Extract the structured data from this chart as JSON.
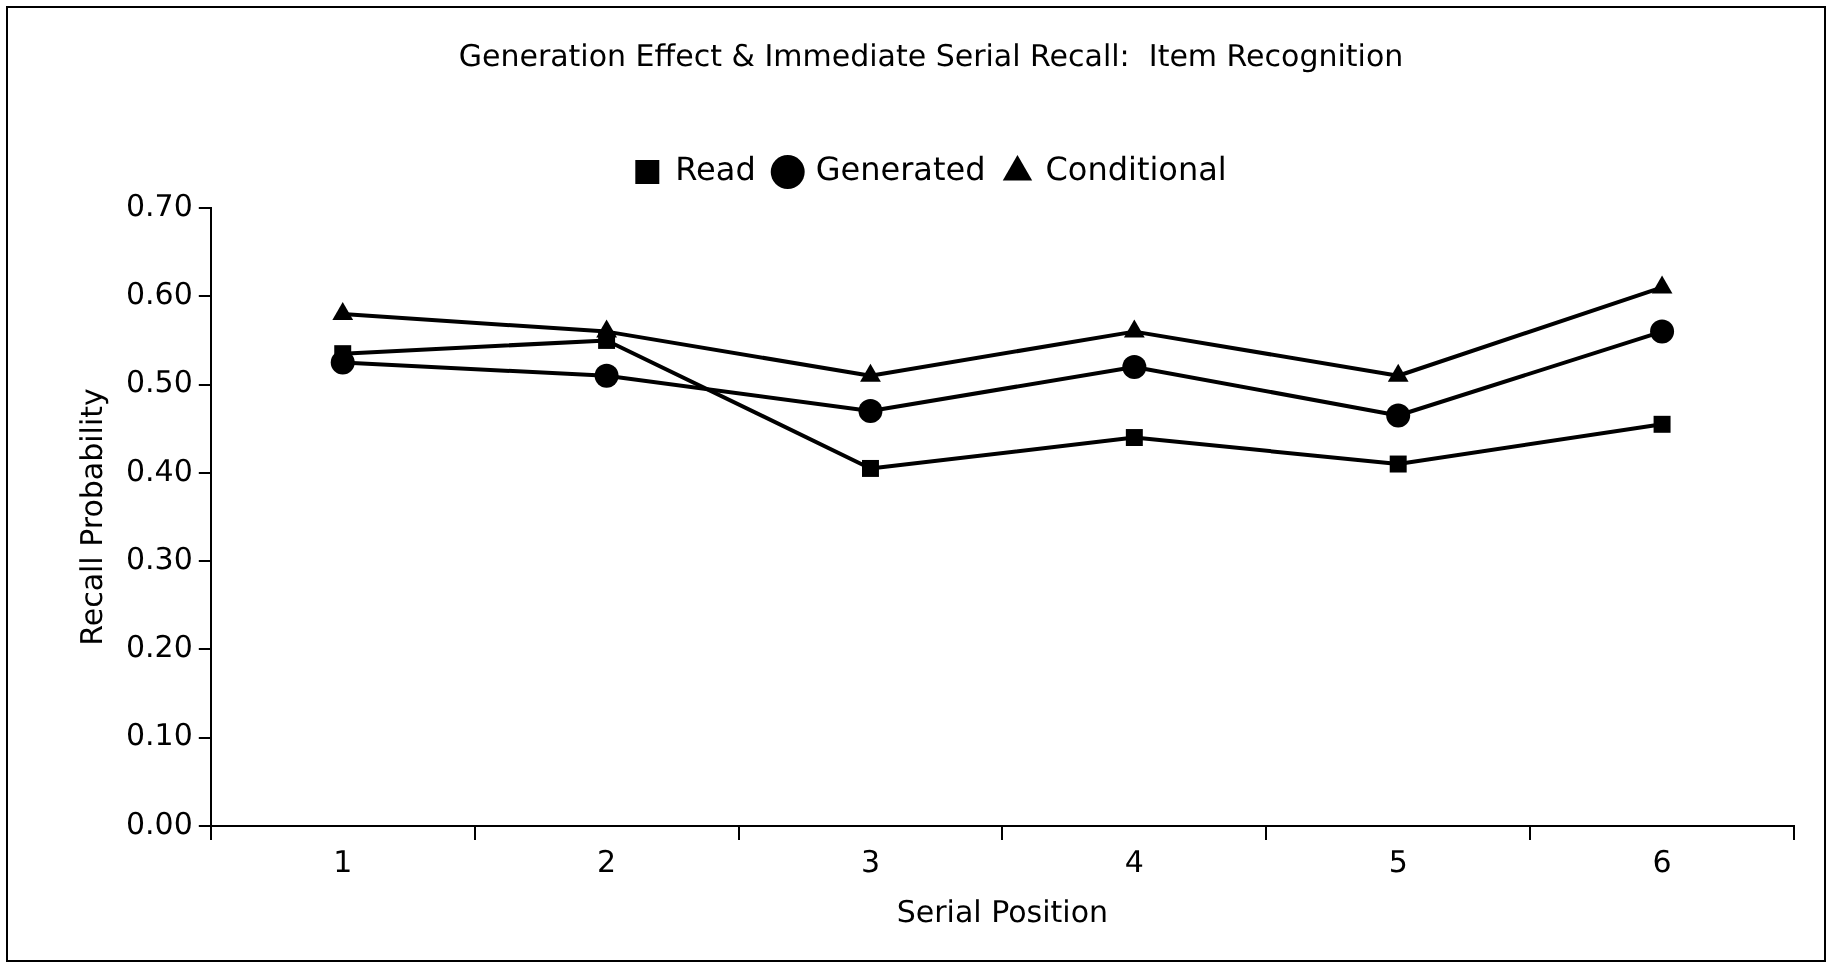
{
  "chart_data": {
    "type": "line",
    "title": "Generation Effect & Immediate Serial Recall:  Item Recognition",
    "xlabel": "Serial Position",
    "ylabel": "Recall Probability",
    "categories": [
      "1",
      "2",
      "3",
      "4",
      "5",
      "6"
    ],
    "series": [
      {
        "name": "Read",
        "color": "#000000",
        "marker": "square",
        "values": [
          0.535,
          0.55,
          0.405,
          0.44,
          0.41,
          0.455
        ]
      },
      {
        "name": "Generated",
        "color": "#000000",
        "marker": "circle",
        "values": [
          0.525,
          0.51,
          0.47,
          0.52,
          0.465,
          0.56
        ]
      },
      {
        "name": "Conditional",
        "color": "#000000",
        "marker": "triangle",
        "values": [
          0.58,
          0.56,
          0.51,
          0.56,
          0.51,
          0.61
        ]
      }
    ],
    "ylim": [
      0,
      0.7
    ],
    "yticks": [
      {
        "value": 0,
        "label": "0.00"
      },
      {
        "value": 0.1,
        "label": "0.10"
      },
      {
        "value": 0.2,
        "label": "0.20"
      },
      {
        "value": 0.3,
        "label": "0.30"
      },
      {
        "value": 0.4,
        "label": "0.40"
      },
      {
        "value": 0.5,
        "label": "0.50"
      },
      {
        "value": 0.6,
        "label": "0.60"
      },
      {
        "value": 0.7,
        "label": "0.70"
      }
    ],
    "grid": false,
    "legend": "top",
    "line_style": "solid"
  }
}
